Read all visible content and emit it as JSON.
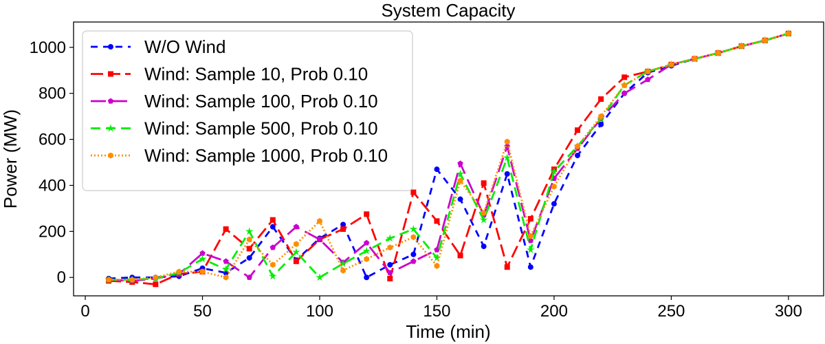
{
  "chart_data": {
    "type": "line",
    "title": "System Capacity",
    "xlabel": "Time (min)",
    "ylabel": "Power (MW)",
    "xlim": [
      -5,
      315
    ],
    "ylim": [
      -80,
      1110
    ],
    "xticks": [
      0,
      50,
      100,
      150,
      200,
      250,
      300
    ],
    "yticks": [
      0,
      200,
      400,
      600,
      800,
      1000
    ],
    "grid": false,
    "legend": "top-left",
    "x": [
      10,
      20,
      30,
      40,
      50,
      60,
      70,
      80,
      90,
      100,
      110,
      120,
      130,
      140,
      150,
      160,
      170,
      180,
      190,
      200,
      210,
      220,
      230,
      240,
      250,
      260,
      270,
      280,
      290,
      300
    ],
    "series": [
      {
        "name": "W/O Wind",
        "color": "#0000ff",
        "dash": "10,8",
        "marker": "circle",
        "values": [
          -5,
          0,
          0,
          5,
          40,
          20,
          85,
          220,
          75,
          170,
          230,
          0,
          55,
          100,
          470,
          340,
          135,
          450,
          45,
          320,
          530,
          665,
          800,
          890,
          920,
          950,
          975,
          1005,
          1030,
          1060
        ]
      },
      {
        "name": "Wind: Sample 10, Prob 0.10",
        "color": "#ff0000",
        "dash": "18,7",
        "marker": "square",
        "values": [
          -15,
          -20,
          -30,
          15,
          25,
          210,
          125,
          250,
          70,
          165,
          210,
          275,
          -5,
          370,
          245,
          95,
          410,
          45,
          255,
          470,
          640,
          775,
          870,
          895,
          925,
          950,
          975,
          1005,
          1030,
          1060
        ]
      },
      {
        "name": "Wind: Sample 100, Prob 0.10",
        "color": "#cc00cc",
        "dash": "22,9",
        "marker": "pentagon",
        "values": [
          -10,
          -15,
          -5,
          15,
          105,
          70,
          0,
          130,
          220,
          165,
          65,
          150,
          20,
          70,
          120,
          495,
          270,
          570,
          160,
          430,
          560,
          690,
          800,
          860,
          925,
          950,
          975,
          1005,
          1030,
          1060
        ]
      },
      {
        "name": "Wind: Sample 500, Prob 0.10",
        "color": "#00ee00",
        "dash": "14,8",
        "marker": "star",
        "values": [
          -10,
          -10,
          -5,
          20,
          80,
          35,
          200,
          5,
          110,
          0,
          60,
          115,
          170,
          210,
          85,
          450,
          250,
          520,
          120,
          460,
          570,
          690,
          835,
          895,
          925,
          950,
          975,
          1005,
          1030,
          1060
        ]
      },
      {
        "name": "Wind: Sample 1000, Prob 0.10",
        "color": "#ff8c00",
        "dash": "2,3",
        "marker": "hexagon",
        "values": [
          -10,
          -10,
          0,
          25,
          25,
          0,
          165,
          55,
          145,
          245,
          30,
          80,
          130,
          175,
          50,
          420,
          280,
          590,
          180,
          395,
          570,
          700,
          835,
          895,
          925,
          950,
          975,
          1005,
          1030,
          1060
        ]
      }
    ]
  }
}
